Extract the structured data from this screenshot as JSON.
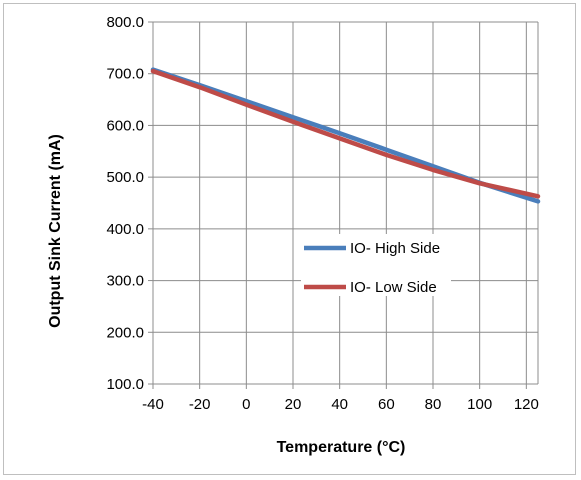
{
  "chart_data": {
    "type": "line",
    "xlabel": "Temperature (°C)",
    "ylabel": "Output Sink Current (mA)",
    "xlim": [
      -40,
      125
    ],
    "ylim": [
      100,
      800
    ],
    "x_ticks": [
      "-40",
      "-20",
      "0",
      "20",
      "40",
      "60",
      "80",
      "100",
      "120"
    ],
    "x_tick_values": [
      -40,
      -20,
      0,
      20,
      40,
      60,
      80,
      100,
      120
    ],
    "y_ticks": [
      "100.0",
      "200.0",
      "300.0",
      "400.0",
      "500.0",
      "600.0",
      "700.0",
      "800.0"
    ],
    "y_tick_values": [
      100,
      200,
      300,
      400,
      500,
      600,
      700,
      800
    ],
    "grid": true,
    "legend_position": "center-right",
    "series": [
      {
        "name": "IO- High Side",
        "color": "#4a7ebb",
        "x": [
          -40,
          -20,
          0,
          20,
          40,
          60,
          80,
          100,
          125
        ],
        "y": [
          708,
          678,
          647,
          616,
          585,
          553,
          521,
          489,
          453
        ]
      },
      {
        "name": "IO- Low Side",
        "color": "#be4b48",
        "x": [
          -40,
          -20,
          0,
          20,
          40,
          60,
          80,
          100,
          125
        ],
        "y": [
          705,
          674,
          640,
          607,
          575,
          543,
          514,
          488,
          463
        ]
      }
    ]
  }
}
